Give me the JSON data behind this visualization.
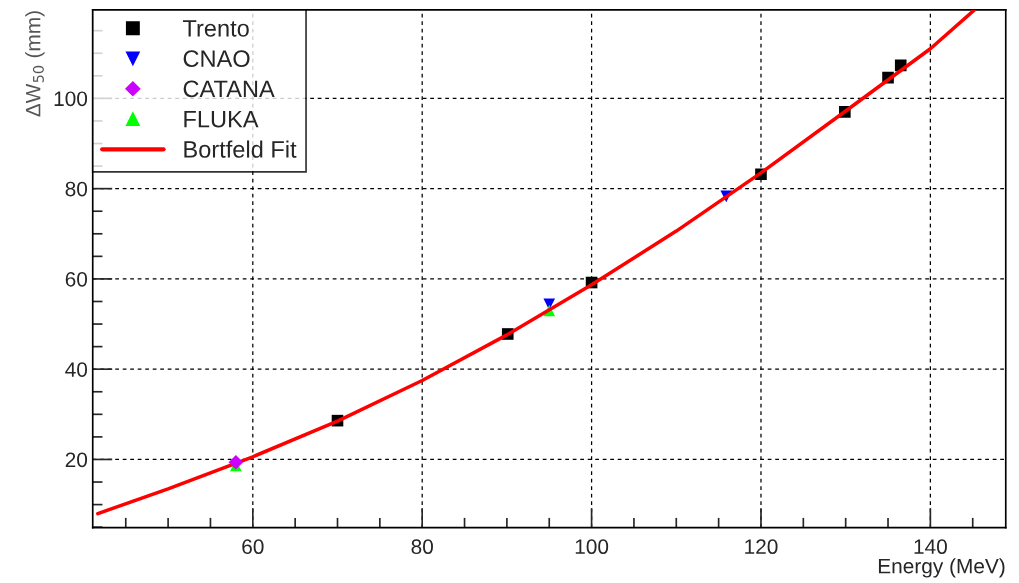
{
  "chart_data": {
    "type": "scatter",
    "xlabel": "Energy (MeV)",
    "ylabel": "ΔW$_{50}$ (mm)",
    "xlim": [
      41.1,
      148.9
    ],
    "ylim": [
      4.9,
      119.6
    ],
    "xticks": [
      {
        "value": 45,
        "label": null
      },
      {
        "value": 50,
        "label": null
      },
      {
        "value": 55,
        "label": null
      },
      60,
      {
        "value": 65,
        "label": null
      },
      {
        "value": 70,
        "label": null
      },
      {
        "value": 75,
        "label": null
      },
      80,
      {
        "value": 85,
        "label": null
      },
      {
        "value": 90,
        "label": null
      },
      {
        "value": 95,
        "label": null
      },
      100,
      {
        "value": 105,
        "label": null
      },
      {
        "value": 110,
        "label": null
      },
      {
        "value": 115,
        "label": null
      },
      120,
      {
        "value": 125,
        "label": null
      },
      {
        "value": 130,
        "label": null
      },
      {
        "value": 135,
        "label": null
      },
      140,
      {
        "value": 145,
        "label": null
      }
    ],
    "yticks": [
      {
        "value": 5,
        "label": null
      },
      {
        "value": 10,
        "label": null
      },
      {
        "value": 15,
        "label": null
      },
      20,
      {
        "value": 25,
        "label": null
      },
      {
        "value": 30,
        "label": null
      },
      {
        "value": 35,
        "label": null
      },
      40,
      {
        "value": 45,
        "label": null
      },
      {
        "value": 50,
        "label": null
      },
      {
        "value": 55,
        "label": null
      },
      60,
      {
        "value": 65,
        "label": null
      },
      {
        "value": 70,
        "label": null
      },
      {
        "value": 75,
        "label": null
      },
      80,
      {
        "value": 85,
        "label": null
      },
      {
        "value": 90,
        "label": null
      },
      {
        "value": 95,
        "label": null
      },
      100,
      {
        "value": 105,
        "label": null
      },
      {
        "value": 110,
        "label": null
      },
      {
        "value": 115,
        "label": null
      }
    ],
    "grid": true,
    "legend": "top left",
    "series": [
      {
        "name": "Trento",
        "color": "#000000",
        "marker": "square",
        "x": [
          70.0,
          90.1,
          100.0,
          120.0,
          129.9,
          135.0,
          136.5
        ],
        "values": [
          28.6,
          47.8,
          59.2,
          83.2,
          97.0,
          104.6,
          107.3
        ]
      },
      {
        "name": "CNAO",
        "color": "#0000ff",
        "marker": "triangle_down",
        "x": [
          95.0,
          115.9
        ],
        "values": [
          54.4,
          78.3
        ]
      },
      {
        "name": "CATANA",
        "color": "#cc00ff",
        "marker": "diamond",
        "x": [
          58.0
        ],
        "values": [
          19.4
        ]
      },
      {
        "name": "FLUKA",
        "color": "#00ff00",
        "marker": "triangle",
        "x": [
          58.0,
          95.0
        ],
        "values": [
          18.7,
          53.0
        ]
      },
      {
        "name": "Bortfeld Fit",
        "type": "line",
        "color": "#ff0000",
        "marker": "none",
        "line_style": "solid",
        "x": [
          41.7,
          50,
          60,
          70,
          80,
          90,
          100,
          110,
          120,
          130,
          140,
          145.2
        ],
        "values": [
          8.0,
          13.5,
          20.6,
          28.5,
          37.5,
          47.6,
          58.7,
          70.6,
          83.5,
          97.2,
          111.0,
          119.6
        ]
      }
    ]
  }
}
